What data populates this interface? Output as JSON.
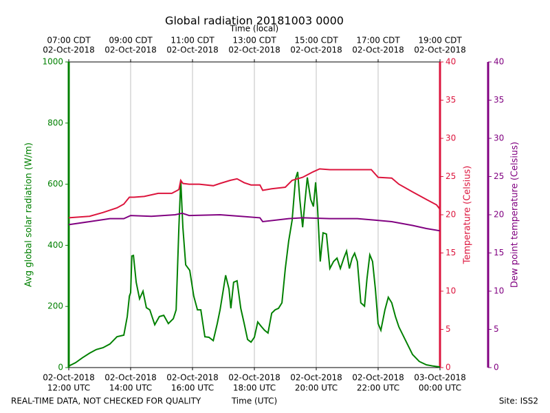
{
  "chart_data": {
    "type": "line",
    "title": "Global radiation 20181003 0000",
    "x2label": "Time (local)",
    "xlabel": "Time (UTC)",
    "ylabel": "Avg global solar radiation (W/m)",
    "y2label": "Temperature (Celsius)",
    "y3label": "Dew point temperature (Celsius)",
    "footer_left": "REAL-TIME DATA, NOT CHECKED FOR QUALITY",
    "footer_right": "Site: ISS2",
    "xlim": [
      12,
      24
    ],
    "xticks": [
      {
        "value": 12,
        "label": [
          "02-Oct-2018",
          "12:00 UTC"
        ]
      },
      {
        "value": 14,
        "label": [
          "02-Oct-2018",
          "14:00 UTC"
        ]
      },
      {
        "value": 16,
        "label": [
          "02-Oct-2018",
          "16:00 UTC"
        ]
      },
      {
        "value": 18,
        "label": [
          "02-Oct-2018",
          "18:00 UTC"
        ]
      },
      {
        "value": 20,
        "label": [
          "02-Oct-2018",
          "20:00 UTC"
        ]
      },
      {
        "value": 22,
        "label": [
          "02-Oct-2018",
          "22:00 UTC"
        ]
      },
      {
        "value": 24,
        "label": [
          "03-Oct-2018",
          "00:00 UTC"
        ]
      }
    ],
    "x2ticks": [
      {
        "value": 12,
        "label": [
          "07:00 CDT",
          "02-Oct-2018"
        ]
      },
      {
        "value": 14,
        "label": [
          "09:00 CDT",
          "02-Oct-2018"
        ]
      },
      {
        "value": 16,
        "label": [
          "11:00 CDT",
          "02-Oct-2018"
        ]
      },
      {
        "value": 18,
        "label": [
          "13:00 CDT",
          "02-Oct-2018"
        ]
      },
      {
        "value": 20,
        "label": [
          "15:00 CDT",
          "02-Oct-2018"
        ]
      },
      {
        "value": 22,
        "label": [
          "17:00 CDT",
          "02-Oct-2018"
        ]
      },
      {
        "value": 24,
        "label": [
          "19:00 CDT",
          "02-Oct-2018"
        ]
      }
    ],
    "ylim": [
      0,
      1000
    ],
    "yticks": [
      0,
      200,
      400,
      600,
      800,
      1000
    ],
    "y2lim": [
      0,
      40
    ],
    "y2ticks": [
      0,
      5,
      10,
      15,
      20,
      25,
      30,
      35,
      40
    ],
    "y3lim": [
      0,
      40
    ],
    "y3ticks": [
      0,
      5,
      10,
      15,
      20,
      25,
      30,
      35,
      40
    ],
    "grid": true,
    "series": [
      {
        "name": "Avg global solar radiation",
        "color": "#008000",
        "axis": "y",
        "x": [
          12.0,
          12.22,
          12.44,
          12.67,
          12.89,
          13.11,
          13.33,
          13.56,
          13.78,
          13.89,
          13.96,
          14.0,
          14.04,
          14.09,
          14.18,
          14.29,
          14.4,
          14.51,
          14.62,
          14.78,
          14.93,
          15.07,
          15.22,
          15.38,
          15.47,
          15.56,
          15.62,
          15.69,
          15.78,
          15.91,
          16.04,
          16.16,
          16.27,
          16.4,
          16.53,
          16.67,
          16.8,
          16.89,
          17.0,
          17.07,
          17.18,
          17.24,
          17.33,
          17.44,
          17.56,
          17.67,
          17.78,
          17.89,
          18.0,
          18.11,
          18.22,
          18.33,
          18.44,
          18.56,
          18.67,
          18.78,
          18.89,
          19.0,
          19.11,
          19.22,
          19.33,
          19.4,
          19.47,
          19.56,
          19.62,
          19.71,
          19.82,
          19.91,
          19.98,
          20.04,
          20.13,
          20.22,
          20.33,
          20.44,
          20.56,
          20.67,
          20.78,
          20.89,
          20.98,
          21.07,
          21.16,
          21.24,
          21.33,
          21.44,
          21.56,
          21.64,
          21.73,
          21.82,
          21.91,
          22.0,
          22.09,
          22.22,
          22.33,
          22.44,
          22.56,
          22.67,
          22.89,
          23.11,
          23.33,
          23.56,
          23.78,
          24.0
        ],
        "values": [
          5,
          16,
          32,
          47,
          59,
          65,
          77,
          101,
          106,
          167,
          234,
          245,
          365,
          367,
          279,
          225,
          250,
          196,
          189,
          140,
          167,
          171,
          144,
          160,
          189,
          459,
          613,
          459,
          336,
          318,
          234,
          189,
          189,
          101,
          99,
          88,
          144,
          189,
          257,
          302,
          257,
          194,
          279,
          284,
          194,
          144,
          92,
          83,
          99,
          149,
          135,
          122,
          113,
          178,
          189,
          194,
          212,
          324,
          414,
          482,
          617,
          640,
          550,
          459,
          527,
          622,
          550,
          527,
          606,
          527,
          347,
          441,
          437,
          324,
          347,
          358,
          324,
          358,
          381,
          324,
          358,
          374,
          347,
          212,
          201,
          291,
          369,
          347,
          257,
          144,
          122,
          189,
          230,
          212,
          167,
          133,
          88,
          43,
          20,
          9,
          5,
          2
        ]
      },
      {
        "name": "Temperature",
        "color": "#dc143c",
        "axis": "y2",
        "x": [
          12.0,
          12.67,
          13.11,
          13.56,
          13.78,
          13.96,
          14.11,
          14.44,
          14.89,
          15.33,
          15.56,
          15.62,
          15.69,
          15.89,
          16.22,
          16.67,
          16.89,
          17.22,
          17.44,
          17.67,
          17.89,
          18.18,
          18.27,
          18.56,
          19.0,
          19.22,
          19.56,
          19.89,
          20.11,
          20.44,
          20.89,
          21.33,
          21.78,
          22.0,
          22.44,
          22.67,
          23.11,
          23.56,
          23.89,
          24.0
        ],
        "values": [
          19.6,
          19.8,
          20.3,
          20.9,
          21.4,
          22.3,
          22.3,
          22.4,
          22.8,
          22.8,
          23.3,
          24.5,
          24.1,
          24.0,
          24.0,
          23.8,
          24.1,
          24.5,
          24.7,
          24.2,
          23.9,
          23.9,
          23.2,
          23.4,
          23.6,
          24.5,
          24.9,
          25.6,
          26.0,
          25.9,
          25.9,
          25.9,
          25.9,
          24.9,
          24.8,
          24.0,
          23.0,
          22.0,
          21.3,
          20.7
        ]
      },
      {
        "name": "Dew point temperature",
        "color": "#800080",
        "axis": "y3",
        "x": [
          12.0,
          12.67,
          13.33,
          13.78,
          14.0,
          14.67,
          15.44,
          15.67,
          15.89,
          16.89,
          17.56,
          18.18,
          18.27,
          19.11,
          19.56,
          20.44,
          21.33,
          21.89,
          22.44,
          23.11,
          23.56,
          24.0
        ],
        "values": [
          18.7,
          19.1,
          19.5,
          19.5,
          19.9,
          19.8,
          20.0,
          20.2,
          19.9,
          20.0,
          19.8,
          19.6,
          19.1,
          19.5,
          19.6,
          19.5,
          19.5,
          19.3,
          19.1,
          18.6,
          18.2,
          17.9
        ]
      }
    ]
  }
}
